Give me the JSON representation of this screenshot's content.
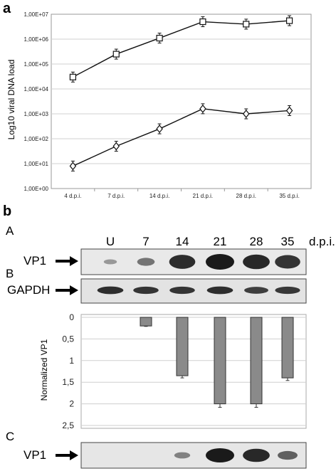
{
  "figure": {
    "panel_a": "a",
    "panel_b": "b",
    "sub_A": "A",
    "sub_B": "B",
    "sub_C": "C",
    "lanes": [
      "U",
      "7",
      "14",
      "21",
      "28",
      "35"
    ],
    "dpi_label": "d.p.i.",
    "blot_label_vp1": "VP1",
    "blot_label_gapdh": "GAPDH",
    "blot_label_vp1_c": "VP1"
  },
  "blots": {
    "vp1_A": [
      0.02,
      0.3,
      0.85,
      1.0,
      0.9,
      0.8
    ],
    "gapdh": [
      0.85,
      0.8,
      0.8,
      0.85,
      0.72,
      0.78
    ],
    "vp1_C": [
      0.0,
      0.0,
      0.2,
      1.0,
      0.9,
      0.45
    ]
  },
  "chart_data": [
    {
      "type": "line",
      "ylabel": "Log10 viral DNA load",
      "xlabel": "",
      "scale": "log",
      "categories": [
        "4 d.p.i.",
        "7 d.p.i.",
        "14 d.p.i.",
        "21 d.p.i.",
        "28 d.p.i.",
        "35 d.p.i."
      ],
      "yticks": [
        "1,00E+00",
        "1,00E+01",
        "1,00E+02",
        "1,00E+03",
        "1,00E+04",
        "1,00E+05",
        "1,00E+06",
        "1,00E+07"
      ],
      "ylim": [
        1,
        10000000
      ],
      "grid": true,
      "series": [
        {
          "marker": "square",
          "values": [
            30000,
            250000,
            1100000,
            5000000,
            4000000,
            5500000
          ]
        },
        {
          "marker": "diamond",
          "values": [
            8,
            50,
            250,
            1600,
            1000,
            1350
          ]
        }
      ]
    },
    {
      "type": "bar",
      "ylabel": "Normalized VP1",
      "categories": [
        "U",
        "7",
        "14",
        "21",
        "28",
        "35"
      ],
      "values": [
        0,
        0.2,
        1.35,
        2.0,
        2.0,
        1.4
      ],
      "errors": [
        0,
        0.01,
        0.05,
        0.08,
        0.08,
        0.06
      ],
      "yticks": [
        "0",
        "0,5",
        "1",
        "1,5",
        "2",
        "2,5"
      ],
      "ylim": [
        0,
        2.5
      ],
      "inverted": true,
      "grid": true
    }
  ]
}
